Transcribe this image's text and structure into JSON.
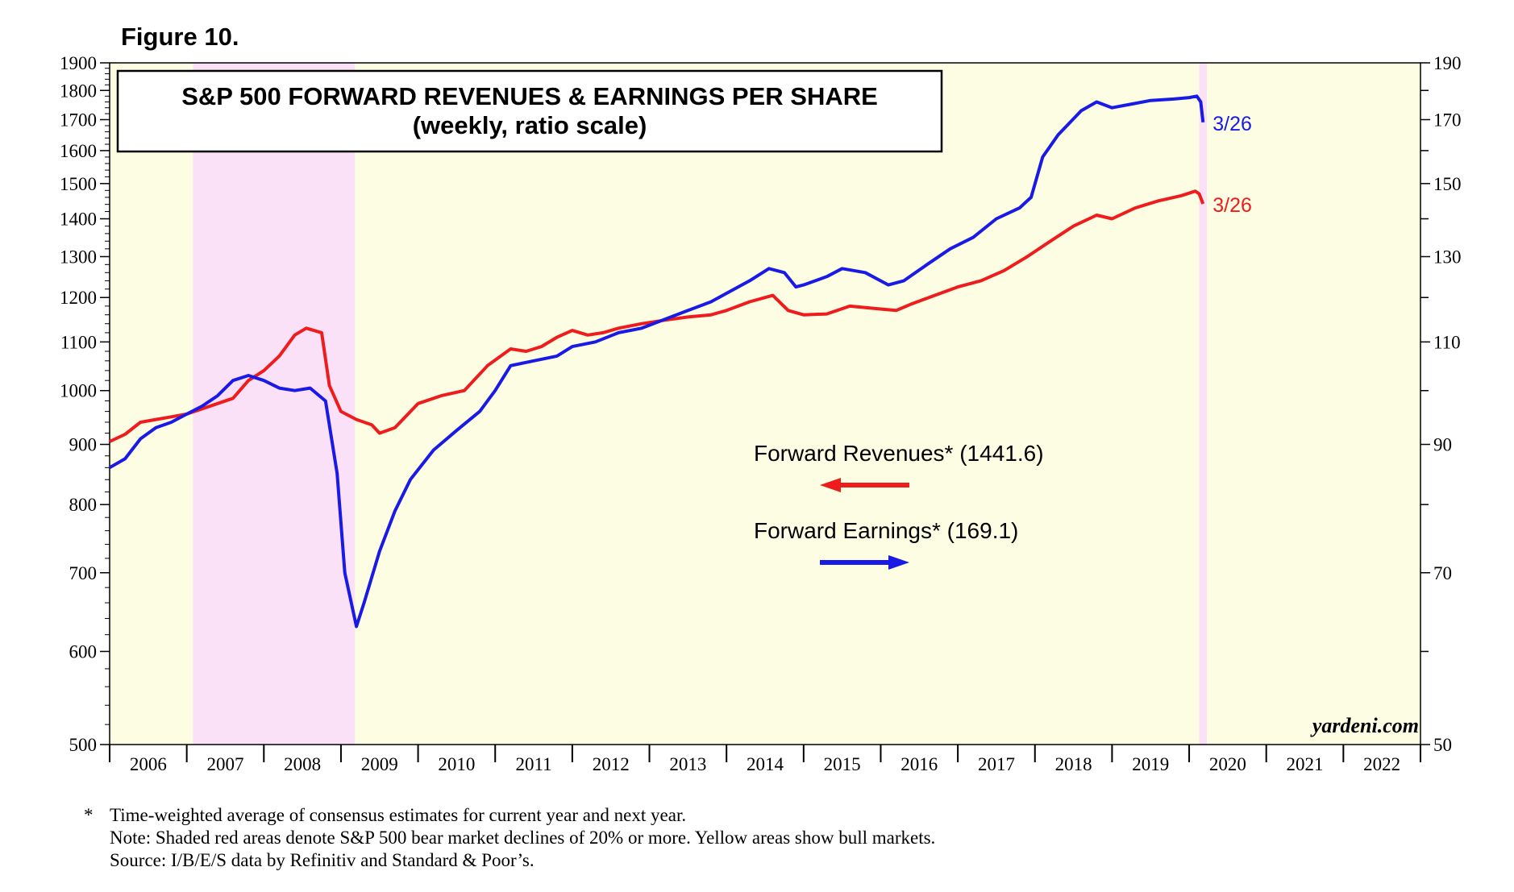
{
  "figure_label": "Figure 10.",
  "chart_data": {
    "type": "line",
    "title": "S&P 500 FORWARD REVENUES & EARNINGS PER SHARE",
    "subtitle": "(weekly, ratio scale)",
    "scale": "log",
    "x_range": [
      2006.0,
      2023.0
    ],
    "x_tick_labels": [
      "2006",
      "2007",
      "2008",
      "2009",
      "2010",
      "2011",
      "2012",
      "2013",
      "2014",
      "2015",
      "2016",
      "2017",
      "2018",
      "2019",
      "2020",
      "2021",
      "2022"
    ],
    "left_axis": {
      "range": [
        500,
        1900
      ],
      "ticks": [
        500,
        600,
        700,
        800,
        900,
        1000,
        1100,
        1200,
        1300,
        1400,
        1500,
        1600,
        1700,
        1800,
        1900
      ],
      "tick_labels": [
        "500",
        "600",
        "700",
        "800",
        "900",
        "1000",
        "1100",
        "1200",
        "1300",
        "1400",
        "1500",
        "1600",
        "1700",
        "1800",
        "1900"
      ]
    },
    "right_axis": {
      "range": [
        50,
        190
      ],
      "ticks": [
        50,
        70,
        90,
        110,
        130,
        150,
        170,
        190
      ],
      "tick_labels": [
        "50",
        "70",
        "90",
        "110",
        "130",
        "150",
        "170",
        "190"
      ]
    },
    "shaded_regions": [
      {
        "type": "bear",
        "start": 2007.08,
        "end": 2009.18,
        "color": "#fbe1f8"
      },
      {
        "type": "bear",
        "start": 2020.13,
        "end": 2020.23,
        "color": "#fbe1f8"
      }
    ],
    "background_color": "#fdfde3",
    "series": [
      {
        "name": "Forward Revenues*",
        "axis": "left",
        "color": "#ee1c1c",
        "latest_value": "1441.6",
        "end_label": "3/26",
        "x": [
          2006.0,
          2006.2,
          2006.4,
          2006.6,
          2006.8,
          2007.0,
          2007.2,
          2007.4,
          2007.6,
          2007.8,
          2008.0,
          2008.2,
          2008.4,
          2008.55,
          2008.75,
          2008.85,
          2009.0,
          2009.2,
          2009.4,
          2009.5,
          2009.7,
          2010.0,
          2010.3,
          2010.6,
          2010.9,
          2011.2,
          2011.4,
          2011.6,
          2011.8,
          2012.0,
          2012.2,
          2012.4,
          2012.6,
          2012.9,
          2013.2,
          2013.5,
          2013.8,
          2014.0,
          2014.3,
          2014.6,
          2014.8,
          2015.0,
          2015.3,
          2015.6,
          2015.9,
          2016.2,
          2016.4,
          2016.7,
          2017.0,
          2017.3,
          2017.6,
          2017.9,
          2018.2,
          2018.5,
          2018.8,
          2019.0,
          2019.3,
          2019.6,
          2019.9,
          2020.08,
          2020.13,
          2020.18
        ],
        "y": [
          905,
          918,
          940,
          945,
          950,
          955,
          965,
          975,
          985,
          1020,
          1040,
          1070,
          1115,
          1130,
          1120,
          1010,
          960,
          945,
          935,
          920,
          930,
          975,
          990,
          1000,
          1050,
          1085,
          1080,
          1090,
          1110,
          1125,
          1115,
          1120,
          1130,
          1140,
          1148,
          1155,
          1160,
          1170,
          1190,
          1205,
          1170,
          1160,
          1162,
          1180,
          1175,
          1170,
          1185,
          1205,
          1225,
          1240,
          1265,
          1300,
          1340,
          1380,
          1410,
          1400,
          1430,
          1450,
          1465,
          1478,
          1470,
          1441.6
        ]
      },
      {
        "name": "Forward Earnings*",
        "axis": "right",
        "color": "#1a1ae6",
        "latest_value": "169.1",
        "end_label": "3/26",
        "x": [
          2006.0,
          2006.2,
          2006.4,
          2006.6,
          2006.8,
          2007.0,
          2007.2,
          2007.4,
          2007.6,
          2007.8,
          2008.0,
          2008.2,
          2008.4,
          2008.6,
          2008.8,
          2008.95,
          2009.05,
          2009.2,
          2009.3,
          2009.5,
          2009.7,
          2009.9,
          2010.2,
          2010.5,
          2010.8,
          2011.0,
          2011.2,
          2011.5,
          2011.8,
          2012.0,
          2012.3,
          2012.6,
          2012.9,
          2013.2,
          2013.5,
          2013.8,
          2014.0,
          2014.3,
          2014.55,
          2014.75,
          2014.9,
          2015.0,
          2015.3,
          2015.5,
          2015.8,
          2016.1,
          2016.3,
          2016.6,
          2016.9,
          2017.2,
          2017.5,
          2017.8,
          2017.95,
          2018.1,
          2018.3,
          2018.6,
          2018.8,
          2019.0,
          2019.2,
          2019.5,
          2019.8,
          2020.0,
          2020.1,
          2020.15,
          2020.18
        ],
        "y": [
          86,
          87.5,
          91,
          93,
          94,
          95.5,
          97,
          99,
          102,
          103,
          102,
          100.5,
          100,
          100.5,
          98,
          85,
          70,
          63,
          66,
          73,
          79,
          84,
          89,
          92.5,
          96,
          100,
          105,
          106,
          107,
          109,
          110,
          112,
          113,
          115,
          117,
          119,
          121,
          124,
          127,
          126,
          122.5,
          123,
          125,
          127,
          126,
          123,
          124,
          128,
          132,
          135,
          140,
          143,
          146,
          158,
          165,
          173,
          176,
          174,
          175,
          176.5,
          177,
          177.5,
          178,
          176,
          169.1
        ]
      }
    ],
    "legend": [
      {
        "label": "Forward Revenues* (1441.6)",
        "direction": "left",
        "color": "#ee1c1c"
      },
      {
        "label": "Forward Earnings* (169.1)",
        "direction": "right",
        "color": "#1a1ae6"
      }
    ],
    "credit": "yardeni.com"
  },
  "footnotes": {
    "star": "*",
    "lines": [
      "Time-weighted average of consensus estimates for current year and next year.",
      "Note: Shaded red areas denote S&P 500 bear market declines of 20% or more. Yellow areas show bull markets.",
      "Source: I/B/E/S data by Refinitiv and Standard & Poor’s."
    ]
  }
}
